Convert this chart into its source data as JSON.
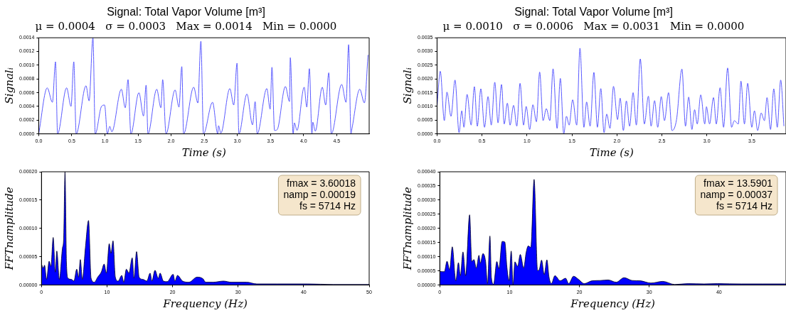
{
  "chart_data": [
    {
      "type": "line",
      "title": "Signal: Total Vapor Volume [m³]",
      "subtitle": "μ = 0.0004   σ = 0.0003   Max = 0.0014   Min = 0.0000",
      "xlabel": "Time (s)",
      "ylabel": "Signalᵢ",
      "marker": "none",
      "xlim": [
        0,
        4.99
      ],
      "xticks": [
        {
          "value": 0,
          "label": "0.0"
        },
        {
          "value": 0.5,
          "label": "0.5"
        },
        {
          "value": 1,
          "label": "1.0"
        },
        {
          "value": 1.5,
          "label": "1.5"
        },
        {
          "value": 2,
          "label": "2.0"
        },
        {
          "value": 2.5,
          "label": "2.5"
        },
        {
          "value": 3,
          "label": "3.0"
        },
        {
          "value": 3.5,
          "label": "3.5"
        },
        {
          "value": 4,
          "label": "4.0"
        },
        {
          "value": 4.5,
          "label": "4.5"
        }
      ],
      "ylim": [
        0,
        0.0014
      ],
      "yticks": [
        {
          "value": 0,
          "label": "0.0000"
        },
        {
          "value": 0.0002,
          "label": "0.0002"
        },
        {
          "value": 0.0004,
          "label": "0.0004"
        },
        {
          "value": 0.0006,
          "label": "0.0006"
        },
        {
          "value": 0.0008,
          "label": "0.0008"
        },
        {
          "value": 0.001,
          "label": "0.0010"
        },
        {
          "value": 0.0012,
          "label": "0.0012"
        },
        {
          "value": 0.0014,
          "label": "0.0014"
        }
      ],
      "x": [
        0,
        0.129,
        0.207,
        0.254,
        0.285,
        0.421,
        0.488,
        0.53,
        0.566,
        0.714,
        0.761,
        0.819,
        0.854,
        0.948,
        0.995,
        1.037,
        1.073,
        1.104,
        1.248,
        1.307,
        1.349,
        1.392,
        1.513,
        1.583,
        1.622,
        1.65,
        1.782,
        1.845,
        1.872,
        1.923,
        2.059,
        2.118,
        2.161,
        2.188,
        2.34,
        2.403,
        2.449,
        2.488,
        2.625,
        2.703,
        2.715,
        2.75,
        2.886,
        2.945,
        2.995,
        3.023,
        3.144,
        3.229,
        3.268,
        3.3,
        3.444,
        3.495,
        3.522,
        3.561,
        3.6,
        3.725,
        3.787,
        3.799,
        3.842,
        3.861,
        3.9,
        4.009,
        4.048,
        4.087,
        4.126,
        4.138,
        4.177,
        4.282,
        4.333,
        4.38,
        4.419,
        4.575,
        4.641,
        4.68,
        4.715,
        4.731,
        4.848,
        4.918,
        4.973
      ],
      "series": [
        {
          "color": "#5a5aff",
          "values": [
            0,
            0.00067,
            0.00046,
            0.00105,
            0,
            0.00067,
            0.0004,
            0.00105,
            0,
            0.0007,
            0.00048,
            0.0014,
            0,
            0.0004,
            0.00042,
            0,
            0.00011,
            3e-05,
            0.00065,
            0.00038,
            0.00079,
            0,
            0.0006,
            0.00026,
            0.00071,
            0,
            0.00065,
            0.00038,
            0.00079,
            0,
            0.00064,
            0.00039,
            0.00098,
            0,
            0.00068,
            0.00045,
            0.00135,
            0,
            0.00046,
            0,
            0.00012,
            1e-05,
            0.00066,
            0.00042,
            0.00103,
            0,
            0.00058,
            0.00013,
            0.00047,
            0,
            0.00066,
            0.00036,
            0.00097,
            5e-05,
            6e-05,
            0.00069,
            0.00047,
            0.00111,
            0,
            0.00016,
            5e-05,
            0.00068,
            0.00039,
            0.00095,
            0,
            0.00017,
            4e-05,
            0.00068,
            0.00042,
            0.00089,
            0,
            0.00072,
            0.00046,
            0.0013,
            0,
            8e-05,
            0.00065,
            0.00045,
            0.00115
          ]
        }
      ]
    },
    {
      "type": "line",
      "title": "Signal: Total Vapor Volume [m³]",
      "subtitle": "μ = 0.0010   σ = 0.0006   Max = 0.0031   Min = 0.0000",
      "xlabel": "Time (s)",
      "ylabel": "Signalᵢ",
      "marker": "none",
      "xlim": [
        0,
        3.88
      ],
      "xticks": [
        {
          "value": 0,
          "label": "0.0"
        },
        {
          "value": 0.5,
          "label": "0.5"
        },
        {
          "value": 1,
          "label": "1.0"
        },
        {
          "value": 1.5,
          "label": "1.5"
        },
        {
          "value": 2,
          "label": "2.0"
        },
        {
          "value": 2.5,
          "label": "2.5"
        },
        {
          "value": 3,
          "label": "3.0"
        },
        {
          "value": 3.5,
          "label": "3.5"
        }
      ],
      "ylim": [
        0,
        0.0035
      ],
      "yticks": [
        {
          "value": 0,
          "label": "0.0000"
        },
        {
          "value": 0.0005,
          "label": "0.0005"
        },
        {
          "value": 0.001,
          "label": "0.0010"
        },
        {
          "value": 0.0015,
          "label": "0.0015"
        },
        {
          "value": 0.002,
          "label": "0.0020"
        },
        {
          "value": 0.0025,
          "label": "0.0025"
        },
        {
          "value": 0.003,
          "label": "0.0030"
        },
        {
          "value": 0.0035,
          "label": "0.0035"
        }
      ],
      "x": [
        0,
        0.036,
        0.081,
        0.11,
        0.155,
        0.2,
        0.245,
        0.275,
        0.299,
        0.334,
        0.379,
        0.415,
        0.448,
        0.487,
        0.528,
        0.567,
        0.603,
        0.642,
        0.678,
        0.717,
        0.747,
        0.782,
        0.812,
        0.851,
        0.887,
        0.923,
        0.962,
        0.991,
        1.03,
        1.066,
        1.105,
        1.141,
        1.179,
        1.215,
        1.254,
        1.29,
        1.335,
        1.371,
        1.409,
        1.439,
        1.469,
        1.508,
        1.553,
        1.589,
        1.633,
        1.663,
        1.702,
        1.744,
        1.783,
        1.821,
        1.857,
        1.887,
        1.923,
        1.962,
        2.007,
        2.036,
        2.072,
        2.105,
        2.141,
        2.18,
        2.216,
        2.26,
        2.305,
        2.35,
        2.38,
        2.419,
        2.454,
        2.493,
        2.529,
        2.574,
        2.613,
        2.663,
        2.723,
        2.762,
        2.798,
        2.834,
        2.864,
        2.893,
        2.932,
        2.977,
        2.995,
        3.03,
        3.074,
        3.105,
        3.147,
        3.186,
        3.231,
        3.275,
        3.305,
        3.35,
        3.379,
        3.418,
        3.454,
        3.5,
        3.529,
        3.565,
        3.604,
        3.64,
        3.669,
        3.708,
        3.744,
        3.783,
        3.821,
        3.857
      ],
      "series": [
        {
          "color": "#5a5aff",
          "values": [
            0.001,
            0.00228,
            0.00048,
            0.00152,
            0.00064,
            0.00196,
            4e-05,
            0.00084,
            0.00024,
            0.00144,
            0.00032,
            0.00172,
            0.00028,
            0.00164,
            0.00024,
            0.00136,
            0.00032,
            0.00188,
            0.0004,
            0.0018,
            0.00036,
            0.00112,
            0.00032,
            0.00104,
            0.00028,
            0.00184,
            0.00032,
            0.001,
            0.00016,
            0.00106,
            0.00044,
            0.00225,
            0.00048,
            0.00092,
            0.00048,
            0.00237,
            0.0002,
            0.00202,
            0,
            0.00064,
            0.00032,
            0.00124,
            0.00032,
            0.00312,
            0.00024,
            0.00116,
            0.00028,
            0.00224,
            0.00024,
            0.00165,
            4e-05,
            0.00072,
            0.0002,
            0.00173,
            0.00052,
            0.0013,
            0.00012,
            0.0012,
            0.00028,
            0.0015,
            0.00032,
            0.00273,
            0.00036,
            0.00137,
            0.00028,
            0.00121,
            0.00024,
            0.00136,
            0.00048,
            0.0015,
            0.00012,
            0.00052,
            0.00236,
            0.00028,
            0.00134,
            0.00016,
            0.00088,
            0.00036,
            0.00142,
            0.00036,
            0.00099,
            0.00036,
            0.00132,
            0.00036,
            0.00168,
            0.00024,
            0.0024,
            0.00024,
            0.00048,
            0.00036,
            0.00192,
            0.00036,
            0.00184,
            0.00024,
            0.00084,
            0.00012,
            0.00076,
            0.00048,
            0.00132,
            0.00016,
            0.00164,
            0.00024,
            0.00196,
            0.00028
          ]
        }
      ]
    },
    {
      "type": "area",
      "xlabel": "Frequency (Hz)",
      "ylabel": "FFTnamplitude",
      "marker": "none",
      "annotations": [
        "fmax = 3.60018",
        "namp = 0.00019",
        "fs = 5714 Hz"
      ],
      "xlim": [
        0,
        50
      ],
      "xticks": [
        0,
        10,
        20,
        30,
        40,
        50
      ],
      "ylim": [
        0,
        0.0002
      ],
      "yticks": [
        {
          "value": 0,
          "label": "0.00000"
        },
        {
          "value": 5e-05,
          "label": "0.00005"
        },
        {
          "value": 0.0001,
          "label": "0.00010"
        },
        {
          "value": 0.00015,
          "label": "0.00015"
        },
        {
          "value": 0.0002,
          "label": "0.00020"
        }
      ],
      "x": [
        0,
        0.27,
        0.47,
        0.78,
        1.17,
        1.44,
        1.79,
        2.11,
        2.34,
        2.73,
        3.2,
        3.39,
        3.59,
        3.82,
        4.06,
        4.56,
        4.95,
        5.38,
        5.66,
        5.93,
        6.24,
        6.71,
        7.18,
        7.57,
        8.07,
        8.58,
        9.13,
        9.56,
        9.91,
        10.34,
        10.61,
        10.92,
        11.27,
        11.7,
        12.25,
        12.56,
        12.95,
        13.34,
        13.85,
        14.12,
        14.51,
        14.9,
        15.48,
        16.07,
        16.58,
        16.85,
        17.32,
        17.82,
        18.1,
        18.6,
        19.19,
        20.09,
        20.36,
        20.75,
        21.53,
        22.5,
        23.75,
        24.65,
        25.04,
        26.2,
        27.77,
        28.94,
        31.28,
        32.84,
        35.96,
        40.64,
        44.54,
        50
      ],
      "series": [
        {
          "color": "#0000ff",
          "values": [
            3.7e-05,
            3e-05,
            3.5e-05,
            1e-05,
            4.2e-05,
            3.3e-05,
            8.4e-05,
            2.3e-05,
            6e-05,
            1e-05,
            6.5e-05,
            8.3e-05,
            0.0002,
            3.7e-05,
            1.2e-05,
            1e-05,
            7e-06,
            2.8e-05,
            1.4e-05,
            4.5e-05,
            1e-05,
            6.7e-05,
            0.000114,
            1.2e-05,
            5e-06,
            1.4e-05,
            2.3e-05,
            3.7e-05,
            2.1e-05,
            7.3e-05,
            5.6e-05,
            7.8e-05,
            1.4e-05,
            7e-06,
            1.7e-05,
            5e-06,
            2.8e-05,
            2.1e-05,
            4.8e-05,
            1.2e-05,
            5.9e-05,
            1.4e-05,
            1e-05,
            7e-06,
            2.1e-05,
            7e-06,
            2.6e-05,
            1.2e-05,
            2.1e-05,
            7e-06,
            6e-06,
            1.9e-05,
            7e-06,
            1.7e-05,
            7e-06,
            5e-06,
            1.4e-05,
            1.1e-05,
            5e-06,
            5e-06,
            7e-06,
            5e-06,
            5e-06,
            2e-06,
            2e-06,
            2e-06,
            1e-06,
            1e-06
          ]
        }
      ]
    },
    {
      "type": "area",
      "xlabel": "Frequency (Hz)",
      "ylabel": "FFTnamplitude",
      "marker": "none",
      "annotations": [
        "fmax = 13.5901",
        "namp = 0.00037",
        "fs = 5714 Hz"
      ],
      "xlim": [
        0,
        49.6
      ],
      "xticks": [
        0,
        10,
        20,
        30,
        40
      ],
      "ylim": [
        0,
        0.0004
      ],
      "yticks": [
        {
          "value": 0,
          "label": "0.00000"
        },
        {
          "value": 5e-05,
          "label": "0.00005"
        },
        {
          "value": 0.0001,
          "label": "0.00010"
        },
        {
          "value": 0.00015,
          "label": "0.00015"
        },
        {
          "value": 0.0002,
          "label": "0.00020"
        },
        {
          "value": 0.00025,
          "label": "0.00025"
        },
        {
          "value": 0.0003,
          "label": "0.00030"
        },
        {
          "value": 0.00035,
          "label": "0.00035"
        },
        {
          "value": 0.0004,
          "label": "0.00040"
        }
      ],
      "x": [
        0,
        0.65,
        1.03,
        1.41,
        1.79,
        2.29,
        2.67,
        2.94,
        3.32,
        3.7,
        4.27,
        4.58,
        4.89,
        5.23,
        5.61,
        5.8,
        6.18,
        6.56,
        6.83,
        7.18,
        7.4,
        7.71,
        8.17,
        8.47,
        8.93,
        9.31,
        9.62,
        9.92,
        10.23,
        10.5,
        10.76,
        11.15,
        11.53,
        12.02,
        12.37,
        12.67,
        13.05,
        13.51,
        14.01,
        14.27,
        14.58,
        14.96,
        15.34,
        15.65,
        15.99,
        16.49,
        17.25,
        18.02,
        18.47,
        19.16,
        19.92,
        20.69,
        21.83,
        22.98,
        24.12,
        25.27,
        26.41,
        27.56,
        28.7,
        30.23,
        31.95,
        33.66,
        35.57,
        37.86,
        39.77,
        43.21,
        46.26,
        49.6
      ],
      "series": [
        {
          "color": "#0000ff",
          "values": [
            4.8e-05,
            4.7e-05,
            8.4e-05,
            5.4e-05,
            0.000135,
            1.5e-05,
            7.9e-05,
            3.3e-05,
            0.000117,
            3.3e-05,
            0.000248,
            8.3e-05,
            9e-05,
            6e-05,
            0.000105,
            7.7e-05,
            0.000111,
            8.3e-05,
            5e-06,
            0.000173,
            2.4e-05,
            3e-06,
            8.3e-05,
            5.8e-05,
            0.000154,
            0.000152,
            6.2e-05,
            1.6e-05,
            0.00012,
            1e-06,
            8.2e-05,
            6.6e-05,
            0.000108,
            6e-05,
            0.000115,
            0.000138,
            0.000133,
            0.000373,
            5.1e-05,
            5.6e-05,
            8.8e-05,
            3.7e-05,
            8.9e-05,
            2.8e-05,
            5e-06,
            3.3e-05,
            1.5e-05,
            2.4e-05,
            5e-06,
            3.1e-05,
            1.9e-05,
            5e-06,
            1.5e-05,
            1.6e-05,
            1.8e-05,
            1e-05,
            2.6e-05,
            1.6e-05,
            1.5e-05,
            7e-06,
            1.3e-05,
            2e-06,
            5e-06,
            4e-06,
            5e-06,
            4e-06,
            4e-06,
            4e-06
          ]
        }
      ]
    }
  ]
}
